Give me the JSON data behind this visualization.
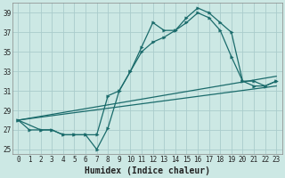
{
  "title": "",
  "xlabel": "Humidex (Indice chaleur)",
  "bg_color": "#cce8e4",
  "line_color": "#1a6b6b",
  "grid_color": "#aacccc",
  "xlim": [
    -0.5,
    23.5
  ],
  "ylim": [
    24.5,
    40.0
  ],
  "yticks": [
    25,
    27,
    29,
    31,
    33,
    35,
    37,
    39
  ],
  "xticks": [
    0,
    1,
    2,
    3,
    4,
    5,
    6,
    7,
    8,
    9,
    10,
    11,
    12,
    13,
    14,
    15,
    16,
    17,
    18,
    19,
    20,
    21,
    22,
    23
  ],
  "lines": [
    {
      "x": [
        0,
        1,
        2,
        3,
        4,
        5,
        6,
        7,
        8,
        9,
        10,
        11,
        12,
        13,
        14,
        15,
        16,
        17,
        18,
        19,
        20,
        21,
        22,
        23
      ],
      "y": [
        28,
        27,
        27,
        27,
        26.5,
        26.5,
        26.5,
        25,
        27.2,
        31,
        33,
        35.5,
        38,
        37.2,
        37.2,
        38.5,
        39.5,
        39,
        38,
        37,
        32,
        31.5,
        31.5,
        32
      ],
      "marker": true
    },
    {
      "x": [
        0,
        2,
        3,
        4,
        5,
        6,
        7,
        8,
        9,
        10,
        11,
        12,
        13,
        14,
        15,
        16,
        17,
        18,
        19,
        20,
        21,
        22,
        23
      ],
      "y": [
        28,
        27,
        27,
        26.5,
        26.5,
        26.5,
        26.5,
        30.5,
        31,
        33,
        35,
        36,
        36.5,
        37.2,
        38,
        39,
        38.5,
        37.2,
        34.5,
        32,
        32,
        31.5,
        32
      ],
      "marker": true
    },
    {
      "x": [
        0,
        23
      ],
      "y": [
        28,
        31.5
      ],
      "marker": false
    },
    {
      "x": [
        0,
        23
      ],
      "y": [
        28,
        32.5
      ],
      "marker": false
    }
  ],
  "tick_fontsize": 5.5,
  "xlabel_fontsize": 7,
  "tick_color": "#222222",
  "spine_color": "#888888"
}
